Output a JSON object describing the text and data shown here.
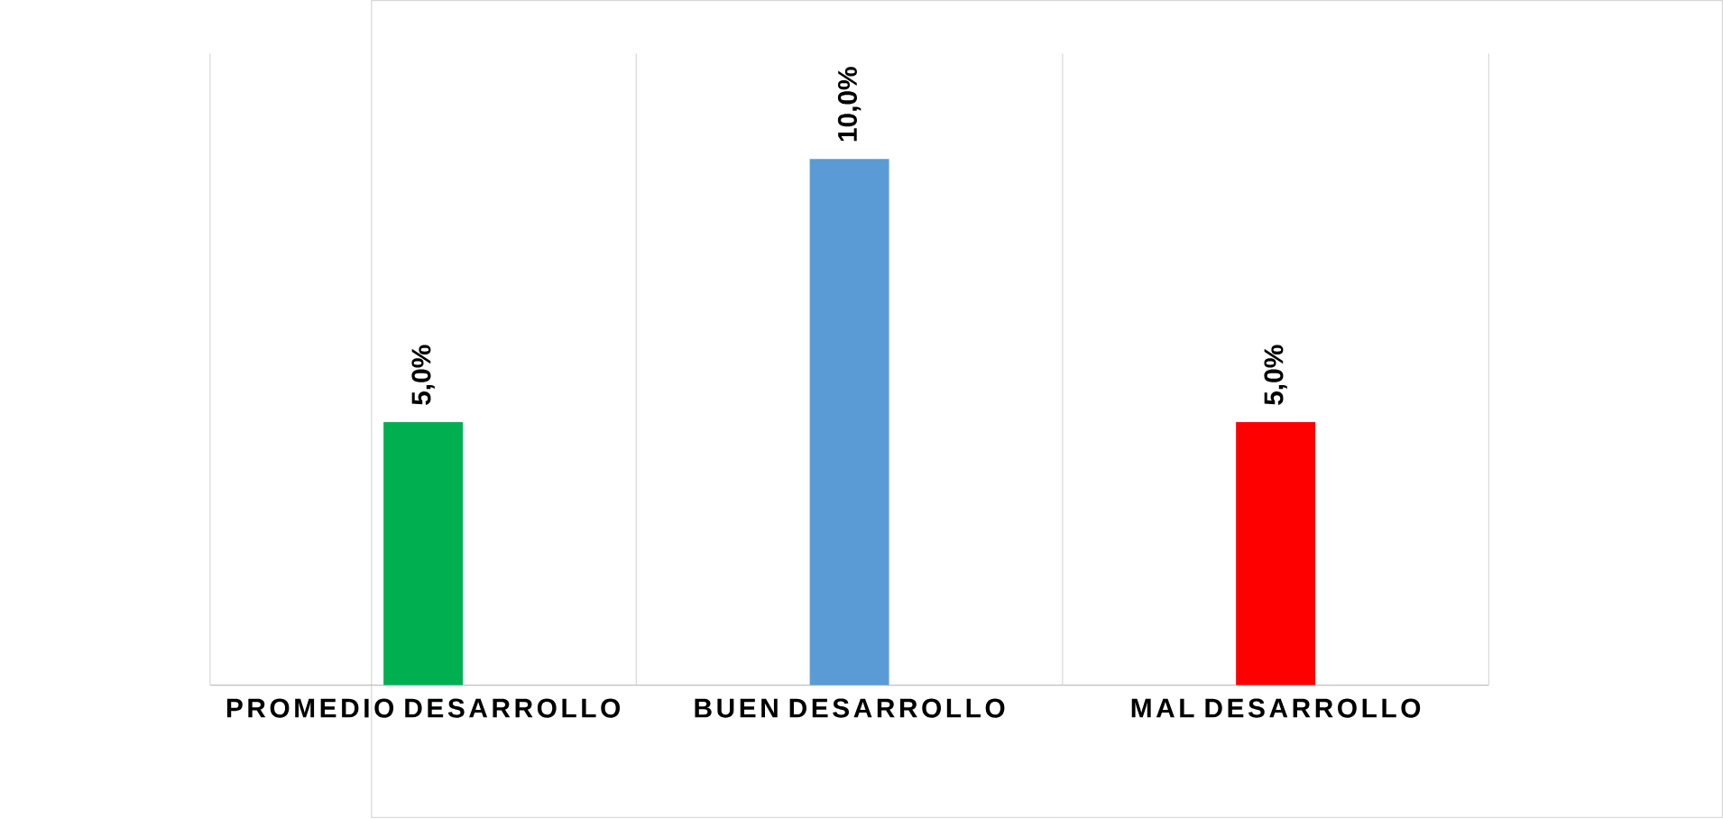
{
  "chart_data": {
    "type": "bar",
    "categories": [
      "PROMEDIO DESARROLLO",
      "BUEN DESARROLLO",
      "MAL DESARROLLO"
    ],
    "values": [
      5,
      10,
      5
    ],
    "value_labels": [
      "5,0%",
      "10,0%",
      "5,0%"
    ],
    "colors": [
      "#00b050",
      "#5b9bd5",
      "#ff0000"
    ],
    "grid": "x"
  }
}
